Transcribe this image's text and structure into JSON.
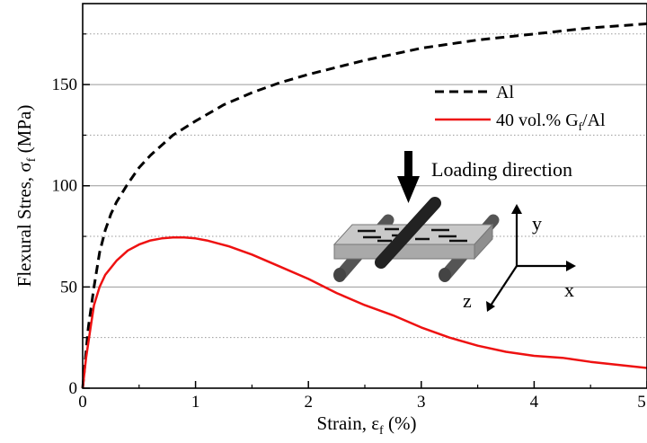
{
  "chart_data": {
    "type": "line",
    "xlabel": {
      "main": "Strain, ε",
      "sub": "f",
      "unit": " (%)"
    },
    "ylabel": {
      "main": "Flexural Stres, σ",
      "sub": "f",
      "unit": " (MPa)"
    },
    "xlim": [
      0,
      5
    ],
    "ylim": [
      0,
      190
    ],
    "xticks": [
      "0",
      "1",
      "2",
      "3",
      "4",
      "5"
    ],
    "xtick_values": [
      0,
      1,
      2,
      3,
      4,
      5
    ],
    "yticks": [
      "0",
      "50",
      "100",
      "150"
    ],
    "ytick_values": [
      0,
      50,
      100,
      150
    ],
    "grid_major_y": [
      50,
      100,
      150
    ],
    "grid_minor_y": [
      25,
      75,
      125,
      175
    ],
    "legend_position": "top-right",
    "series": [
      {
        "name": "Al",
        "style": "dashed",
        "color": "#000000",
        "x": [
          0,
          0.05,
          0.1,
          0.15,
          0.2,
          0.25,
          0.3,
          0.4,
          0.5,
          0.6,
          0.8,
          1.0,
          1.25,
          1.5,
          1.75,
          2.0,
          2.5,
          3.0,
          3.5,
          4.0,
          4.5,
          5.0
        ],
        "y": [
          0,
          30,
          50,
          67,
          78,
          86,
          92,
          101,
          109,
          115,
          125,
          132,
          140,
          146,
          151,
          155,
          162,
          168,
          172,
          175,
          178,
          180
        ]
      },
      {
        "name": "40 vol.% G/Al",
        "name_parts": {
          "main": "40 vol.% G",
          "sub": "f",
          "tail": "/Al"
        },
        "style": "solid",
        "color": "#ee1111",
        "x": [
          0,
          0.03,
          0.07,
          0.1,
          0.15,
          0.2,
          0.3,
          0.4,
          0.5,
          0.6,
          0.7,
          0.8,
          0.9,
          1.0,
          1.1,
          1.2,
          1.3,
          1.4,
          1.5,
          1.75,
          2.0,
          2.25,
          2.5,
          2.75,
          3.0,
          3.25,
          3.5,
          3.75,
          4.0,
          4.25,
          4.5,
          4.75,
          5.0
        ],
        "y": [
          0,
          15,
          30,
          41,
          50,
          56,
          63,
          68,
          71,
          73,
          74,
          74.5,
          74.5,
          74,
          73,
          71.5,
          70,
          68,
          66,
          60,
          54,
          47,
          41,
          36,
          30,
          25,
          21,
          18,
          16,
          15,
          13,
          11.5,
          10
        ]
      }
    ],
    "annotations": {
      "loading_direction": "Loading direction",
      "axis_y": "y",
      "axis_x": "x",
      "axis_z": "z"
    }
  }
}
